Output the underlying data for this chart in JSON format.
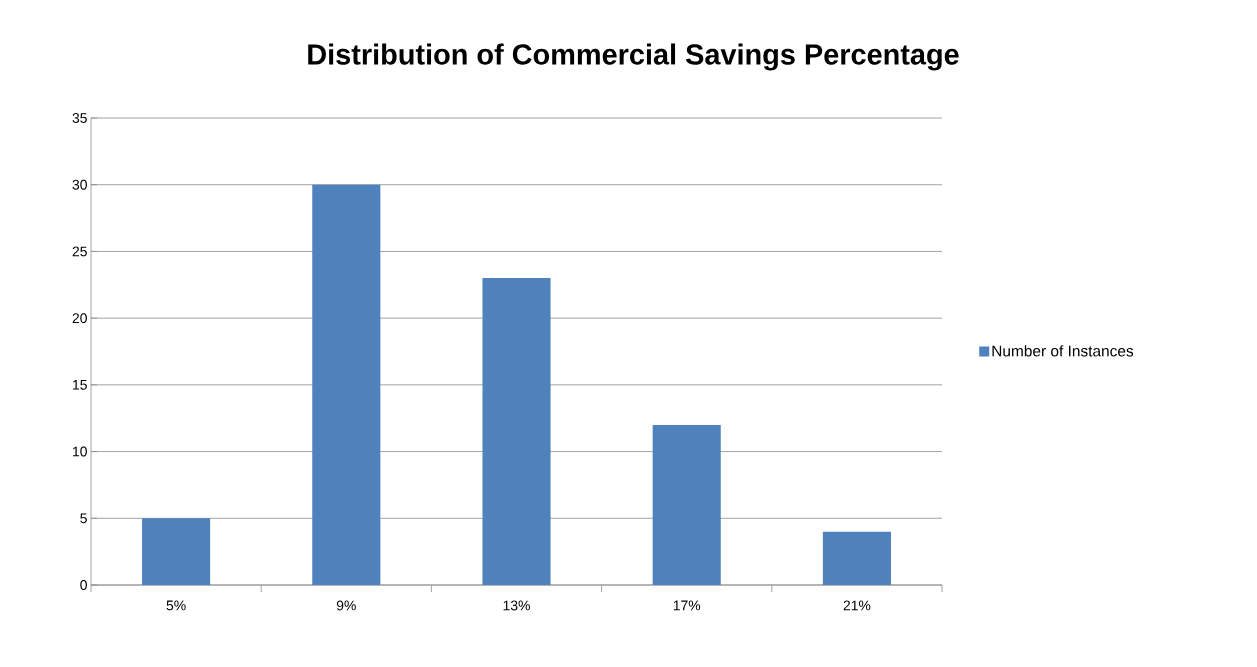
{
  "chart_data": {
    "type": "bar",
    "title": "Distribution of Commercial Savings Percentage",
    "categories": [
      "5%",
      "9%",
      "13%",
      "17%",
      "21%"
    ],
    "series": [
      {
        "name": "Number of Instances",
        "color": "#4f81bd",
        "values": [
          5,
          30,
          23,
          12,
          4
        ]
      }
    ],
    "ylim": [
      0,
      35
    ],
    "yticks": [
      0,
      5,
      10,
      15,
      20,
      25,
      30,
      35
    ],
    "grid": "y",
    "legend": "right"
  }
}
